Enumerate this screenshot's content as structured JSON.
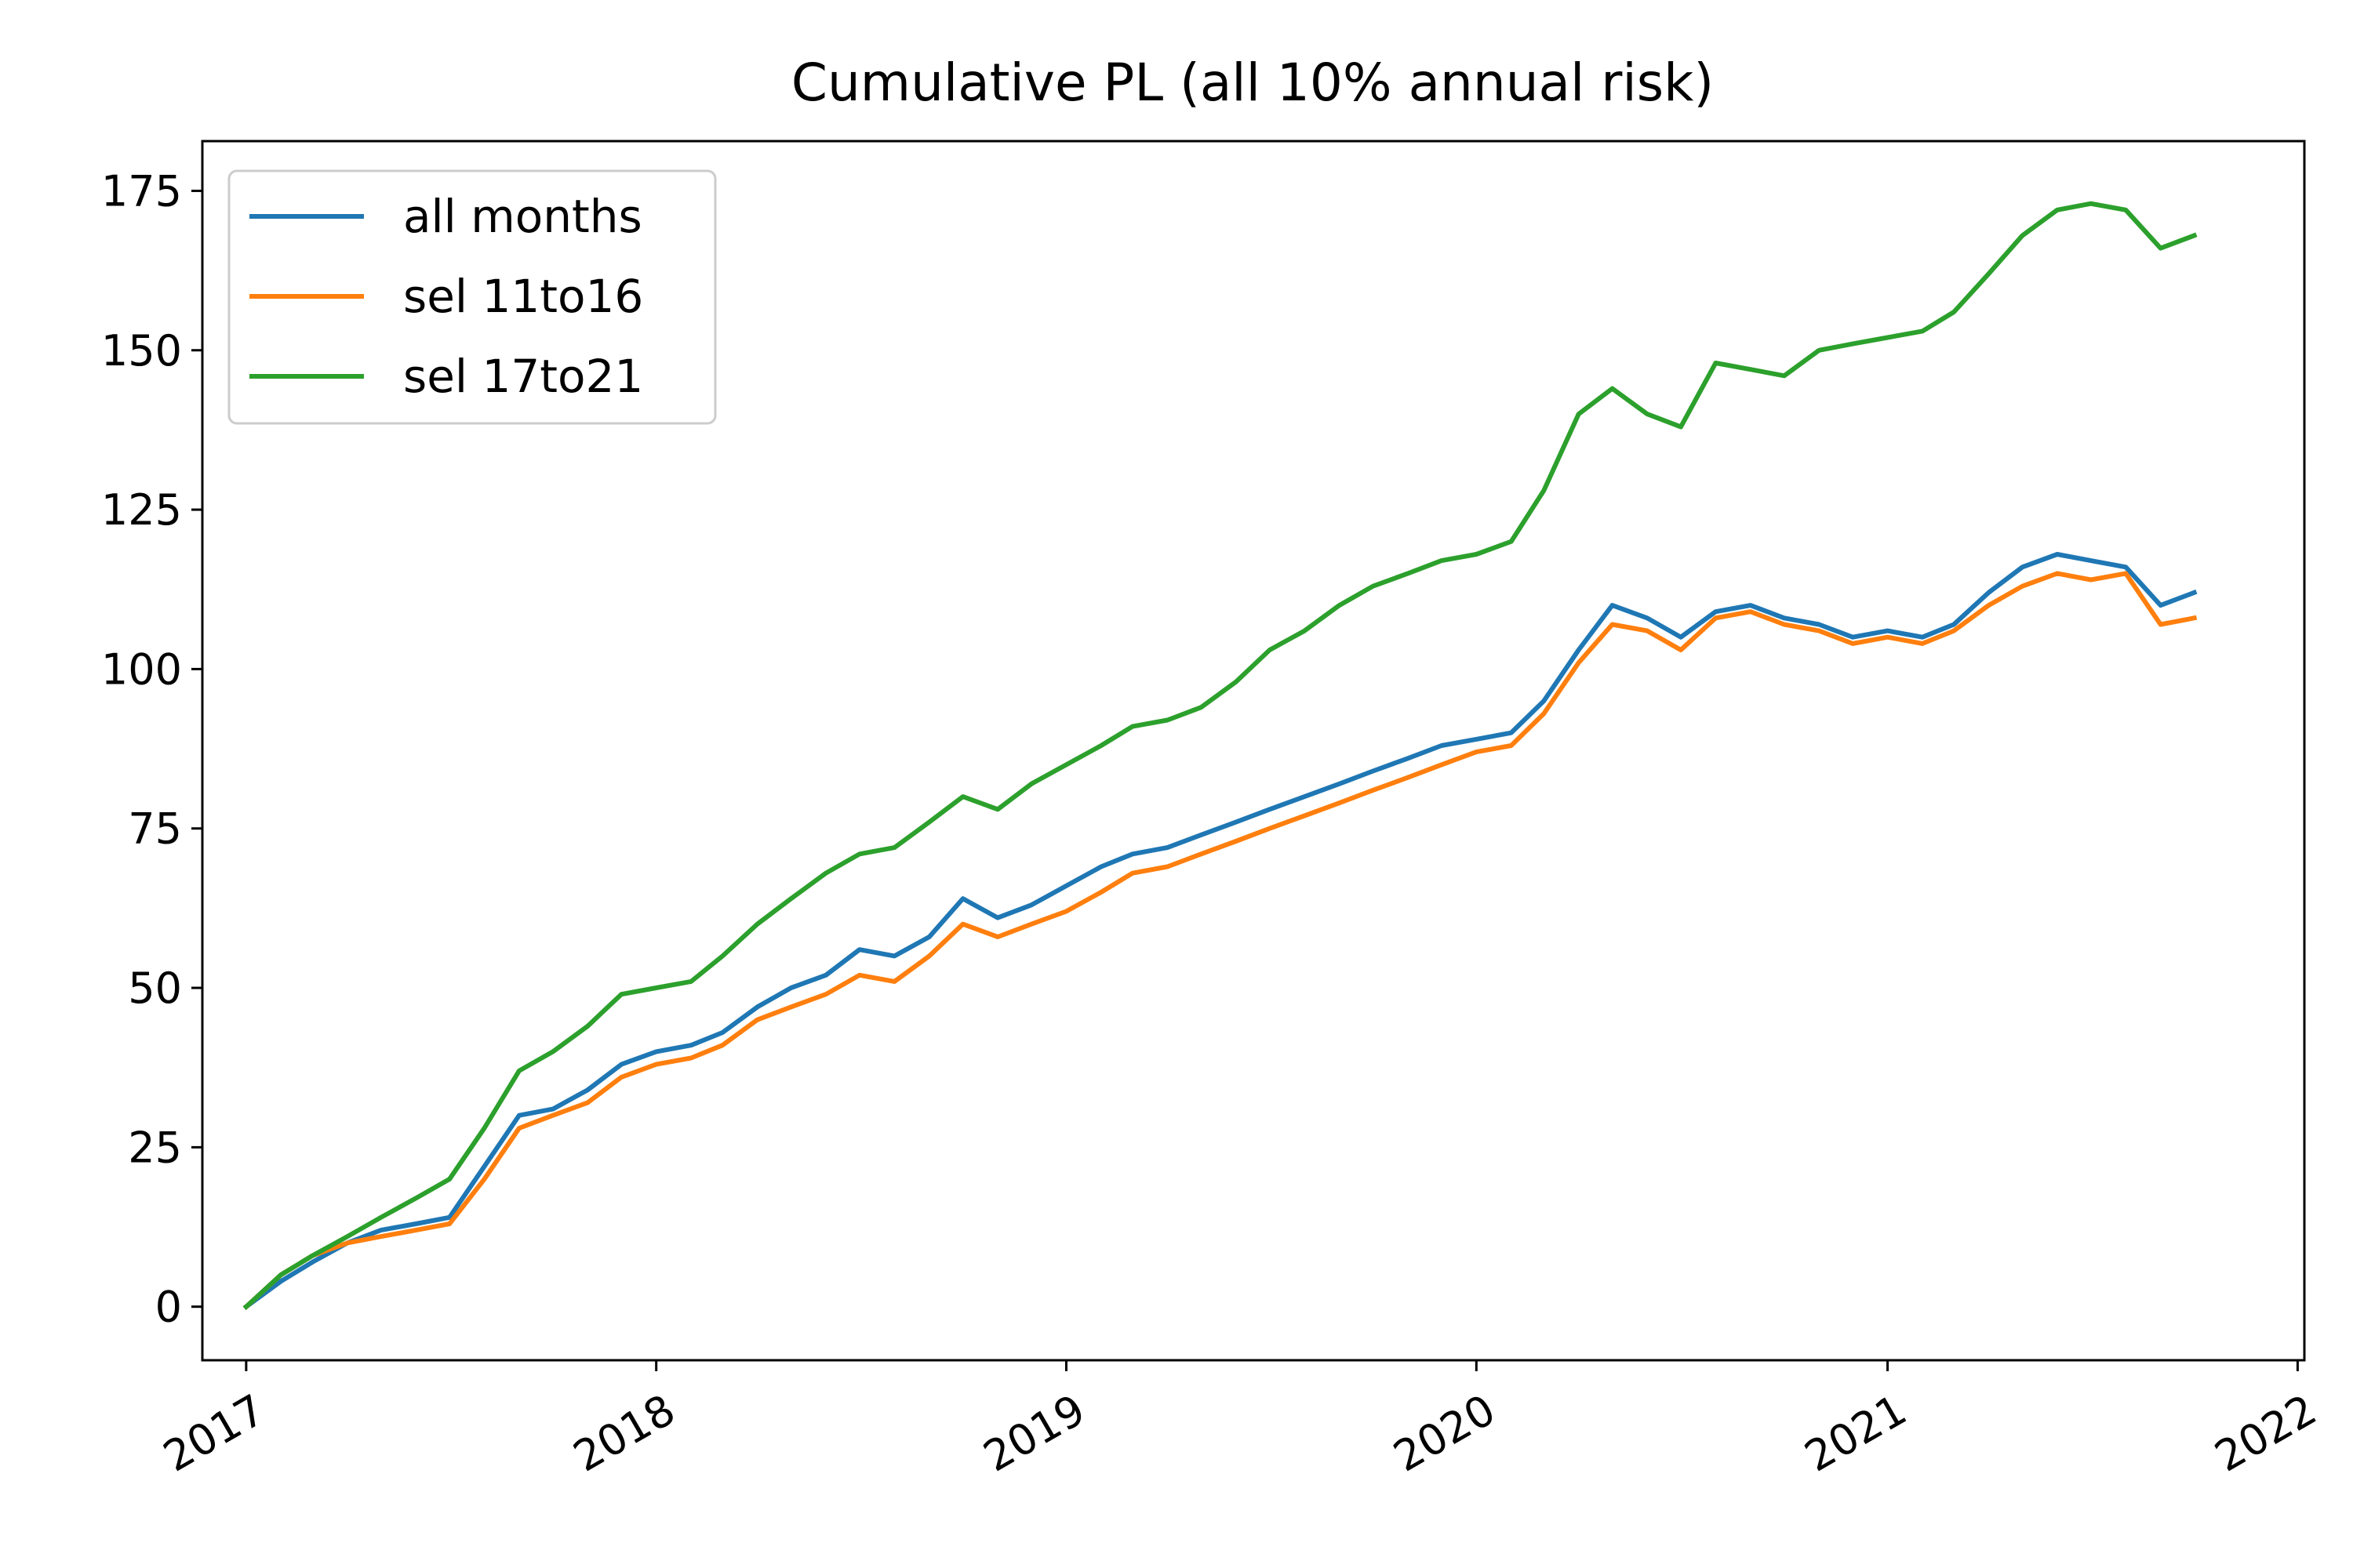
{
  "chart_data": {
    "type": "line",
    "title": "Cumulative PL (all 10% annual risk)",
    "xlabel": "",
    "ylabel": "",
    "x_type": "date",
    "xlim": [
      "2016-11-23",
      "2022-01-07"
    ],
    "ylim": [
      -8.4,
      182.8
    ],
    "x_ticks": [
      {
        "date": "2017-01-01",
        "label": "2017"
      },
      {
        "date": "2018-01-01",
        "label": "2018"
      },
      {
        "date": "2019-01-01",
        "label": "2019"
      },
      {
        "date": "2020-01-01",
        "label": "2020"
      },
      {
        "date": "2021-01-01",
        "label": "2021"
      },
      {
        "date": "2022-01-01",
        "label": "2022"
      }
    ],
    "y_ticks": [
      0,
      25,
      50,
      75,
      100,
      125,
      150,
      175
    ],
    "grid": false,
    "legend": "top-left",
    "series": [
      {
        "name": "all months",
        "color": "#1f77b4",
        "x": [
          "2017-01-01",
          "2017-02-01",
          "2017-03-01",
          "2017-04-01",
          "2017-05-01",
          "2017-06-01",
          "2017-07-01",
          "2017-08-01",
          "2017-09-01",
          "2017-10-01",
          "2017-11-01",
          "2017-12-01",
          "2018-01-01",
          "2018-02-01",
          "2018-03-01",
          "2018-04-01",
          "2018-05-01",
          "2018-06-01",
          "2018-07-01",
          "2018-08-01",
          "2018-09-01",
          "2018-10-01",
          "2018-11-01",
          "2018-12-01",
          "2019-01-01",
          "2019-02-01",
          "2019-03-01",
          "2019-04-01",
          "2019-05-01",
          "2019-06-01",
          "2019-07-01",
          "2019-08-01",
          "2019-09-01",
          "2019-10-01",
          "2019-11-01",
          "2019-12-01",
          "2020-01-01",
          "2020-02-01",
          "2020-03-01",
          "2020-04-01",
          "2020-05-01",
          "2020-06-01",
          "2020-07-01",
          "2020-08-01",
          "2020-09-01",
          "2020-10-01",
          "2020-11-01",
          "2020-12-01",
          "2021-01-01",
          "2021-02-01",
          "2021-03-01",
          "2021-04-01",
          "2021-05-01",
          "2021-06-01",
          "2021-07-01",
          "2021-08-01",
          "2021-09-01",
          "2021-10-01"
        ],
        "y": [
          0,
          4,
          7,
          10,
          12,
          13,
          14,
          22,
          30,
          31,
          34,
          38,
          40,
          41,
          43,
          47,
          50,
          52,
          56,
          55,
          58,
          64,
          61,
          63,
          66,
          69,
          71,
          72,
          74,
          76,
          78,
          80,
          82,
          84,
          86,
          88,
          89,
          90,
          95,
          103,
          110,
          108,
          105,
          109,
          110,
          108,
          107,
          105,
          106,
          105,
          107,
          112,
          116,
          118,
          117,
          116,
          110,
          112
        ]
      },
      {
        "name": "sel 11to16",
        "color": "#ff7f0e",
        "x": [
          "2017-01-01",
          "2017-02-01",
          "2017-03-01",
          "2017-04-01",
          "2017-05-01",
          "2017-06-01",
          "2017-07-01",
          "2017-08-01",
          "2017-09-01",
          "2017-10-01",
          "2017-11-01",
          "2017-12-01",
          "2018-01-01",
          "2018-02-01",
          "2018-03-01",
          "2018-04-01",
          "2018-05-01",
          "2018-06-01",
          "2018-07-01",
          "2018-08-01",
          "2018-09-01",
          "2018-10-01",
          "2018-11-01",
          "2018-12-01",
          "2019-01-01",
          "2019-02-01",
          "2019-03-01",
          "2019-04-01",
          "2019-05-01",
          "2019-06-01",
          "2019-07-01",
          "2019-08-01",
          "2019-09-01",
          "2019-10-01",
          "2019-11-01",
          "2019-12-01",
          "2020-01-01",
          "2020-02-01",
          "2020-03-01",
          "2020-04-01",
          "2020-05-01",
          "2020-06-01",
          "2020-07-01",
          "2020-08-01",
          "2020-09-01",
          "2020-10-01",
          "2020-11-01",
          "2020-12-01",
          "2021-01-01",
          "2021-02-01",
          "2021-03-01",
          "2021-04-01",
          "2021-05-01",
          "2021-06-01",
          "2021-07-01",
          "2021-08-01",
          "2021-09-01",
          "2021-10-01"
        ],
        "y": [
          0,
          5,
          8,
          10,
          11,
          12,
          13,
          20,
          28,
          30,
          32,
          36,
          38,
          39,
          41,
          45,
          47,
          49,
          52,
          51,
          55,
          60,
          58,
          60,
          62,
          65,
          68,
          69,
          71,
          73,
          75,
          77,
          79,
          81,
          83,
          85,
          87,
          88,
          93,
          101,
          107,
          106,
          103,
          108,
          109,
          107,
          106,
          104,
          105,
          104,
          106,
          110,
          113,
          115,
          114,
          115,
          107,
          108
        ]
      },
      {
        "name": "sel 17to21",
        "color": "#2ca02c",
        "x": [
          "2017-01-01",
          "2017-02-01",
          "2017-03-01",
          "2017-04-01",
          "2017-05-01",
          "2017-06-01",
          "2017-07-01",
          "2017-08-01",
          "2017-09-01",
          "2017-10-01",
          "2017-11-01",
          "2017-12-01",
          "2018-01-01",
          "2018-02-01",
          "2018-03-01",
          "2018-04-01",
          "2018-05-01",
          "2018-06-01",
          "2018-07-01",
          "2018-08-01",
          "2018-09-01",
          "2018-10-01",
          "2018-11-01",
          "2018-12-01",
          "2019-01-01",
          "2019-02-01",
          "2019-03-01",
          "2019-04-01",
          "2019-05-01",
          "2019-06-01",
          "2019-07-01",
          "2019-08-01",
          "2019-09-01",
          "2019-10-01",
          "2019-11-01",
          "2019-12-01",
          "2020-01-01",
          "2020-02-01",
          "2020-03-01",
          "2020-04-01",
          "2020-05-01",
          "2020-06-01",
          "2020-07-01",
          "2020-08-01",
          "2020-09-01",
          "2020-10-01",
          "2020-11-01",
          "2020-12-01",
          "2021-01-01",
          "2021-02-01",
          "2021-03-01",
          "2021-04-01",
          "2021-05-01",
          "2021-06-01",
          "2021-07-01",
          "2021-08-01",
          "2021-09-01",
          "2021-10-01"
        ],
        "y": [
          0,
          5,
          8,
          11,
          14,
          17,
          20,
          28,
          37,
          40,
          44,
          49,
          50,
          51,
          55,
          60,
          64,
          68,
          71,
          72,
          76,
          80,
          78,
          82,
          85,
          88,
          91,
          92,
          94,
          98,
          103,
          106,
          110,
          113,
          115,
          117,
          118,
          120,
          128,
          140,
          144,
          140,
          138,
          148,
          147,
          146,
          150,
          151,
          152,
          153,
          156,
          162,
          168,
          172,
          173,
          172,
          166,
          168
        ]
      }
    ]
  }
}
